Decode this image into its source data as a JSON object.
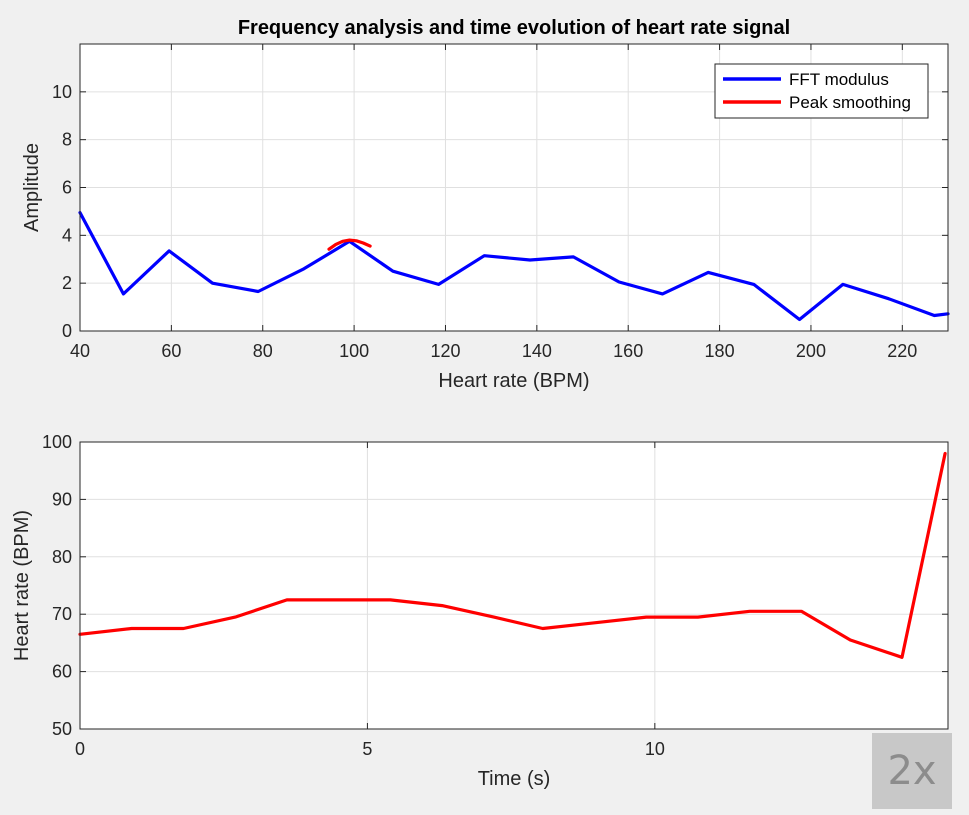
{
  "chart_data": [
    {
      "type": "line",
      "title": "Frequency analysis and time evolution of heart rate signal",
      "xlabel": "Heart rate (BPM)",
      "ylabel": "Amplitude",
      "xlim": [
        40,
        230
      ],
      "ylim": [
        0,
        12
      ],
      "xticks": [
        40,
        60,
        80,
        100,
        120,
        140,
        160,
        180,
        200,
        220
      ],
      "yticks": [
        0,
        2,
        4,
        6,
        8,
        10
      ],
      "grid": true,
      "legend": "top-right",
      "series": [
        {
          "name": "FFT modulus",
          "color": "#0000ff",
          "x": [
            40,
            49.5,
            59.5,
            69,
            79,
            89,
            99,
            108.5,
            118.5,
            128.5,
            138.5,
            148,
            158,
            167.5,
            177.5,
            187.5,
            197.5,
            207,
            217,
            227,
            230
          ],
          "y": [
            4.95,
            1.55,
            3.35,
            2.0,
            1.65,
            2.6,
            3.75,
            2.5,
            1.95,
            3.15,
            2.97,
            3.1,
            2.05,
            1.55,
            2.45,
            1.95,
            0.48,
            1.95,
            1.35,
            0.65,
            0.72
          ]
        },
        {
          "name": "Peak smoothing",
          "color": "#ff0000",
          "x": [
            94.5,
            96,
            97.5,
            99,
            100.5,
            102,
            103.5
          ],
          "y": [
            3.42,
            3.62,
            3.75,
            3.8,
            3.77,
            3.68,
            3.55
          ]
        }
      ]
    },
    {
      "type": "line",
      "title": "",
      "xlabel": "Time (s)",
      "ylabel": "Heart rate (BPM)",
      "xlim": [
        0,
        15.1
      ],
      "ylim": [
        50,
        100
      ],
      "xticks": [
        0,
        5,
        10
      ],
      "yticks": [
        50,
        60,
        70,
        80,
        90,
        100
      ],
      "grid": true,
      "series": [
        {
          "color": "#ff0000",
          "x": [
            0,
            0.9,
            1.8,
            2.7,
            3.6,
            4.5,
            5.4,
            6.3,
            7.2,
            8.05,
            8.95,
            9.85,
            10.75,
            11.65,
            12.55,
            13.4,
            14.3,
            15.05
          ],
          "y": [
            66.5,
            67.5,
            67.5,
            69.5,
            72.5,
            72.5,
            72.5,
            71.5,
            69.5,
            67.5,
            68.5,
            69.5,
            69.5,
            70.5,
            70.5,
            65.5,
            62.5,
            98
          ]
        }
      ]
    }
  ],
  "overlay": {
    "badge": "2x"
  }
}
